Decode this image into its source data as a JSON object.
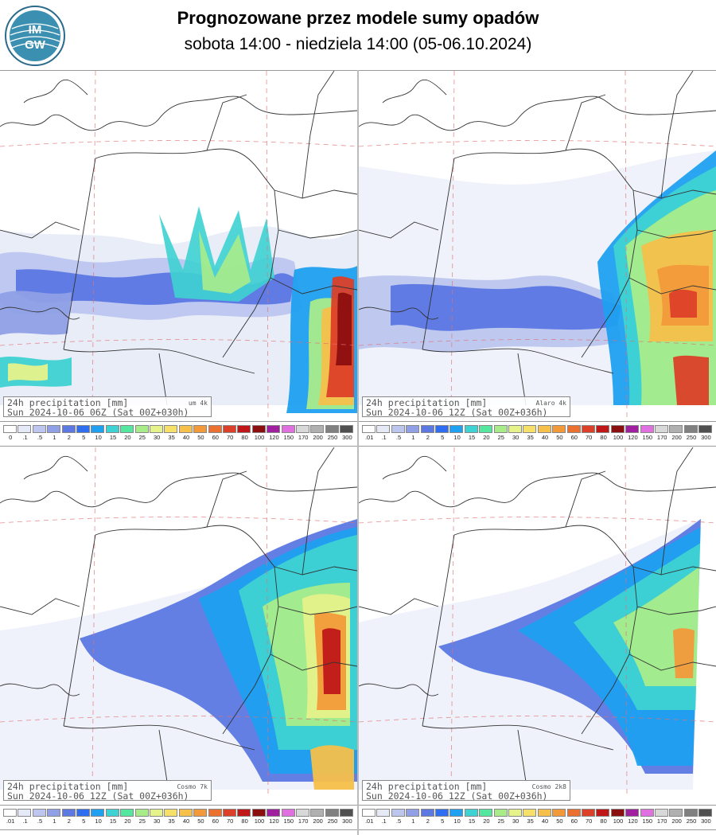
{
  "header": {
    "title": "Prognozowane przez modele sumy opadów",
    "subtitle": "sobota 14:00 - niedziela 14:00 (05-06.10.2024)",
    "logo_text": "IMGW"
  },
  "legend_labels_a": [
    "0",
    ".1",
    ".5",
    "1",
    "2",
    "5",
    "10",
    "15",
    "20",
    "25",
    "30",
    "35",
    "40",
    "50",
    "60",
    "70",
    "80",
    "100",
    "120",
    "150",
    "170",
    "200",
    "250",
    "300"
  ],
  "legend_labels_b": [
    ".01",
    ".1",
    ".5",
    "1",
    "2",
    "5",
    "10",
    "15",
    "20",
    "25",
    "30",
    "35",
    "40",
    "50",
    "60",
    "70",
    "80",
    "100",
    "120",
    "150",
    "170",
    "200",
    "250",
    "300"
  ],
  "legend_colors": [
    "#ffffff",
    "#e6eaf7",
    "#bcc6ef",
    "#8fa0e6",
    "#5b78e3",
    "#2f6ef0",
    "#1fa0f0",
    "#3ed2d2",
    "#55e6a0",
    "#a8ec8a",
    "#e6f28a",
    "#f7e06a",
    "#f6c04a",
    "#f29a3a",
    "#ec7030",
    "#dc4028",
    "#c01818",
    "#8c0f0f",
    "#a020a0",
    "#e070e0",
    "#d8d8d8",
    "#b0b0b0",
    "#808080",
    "#505050"
  ],
  "panels": [
    {
      "id": "um4k",
      "line1": "24h precipitation  [mm]",
      "line2": "Sun 2024-10-06 06Z (Sat 00Z+030h)",
      "model": "um 4k"
    },
    {
      "id": "alaro4k",
      "line1": "24h precipitation  [mm]",
      "line2": "Sun 2024-10-06 12Z (Sat 00Z+036h)",
      "model": "Alaro 4k"
    },
    {
      "id": "cosmo7k",
      "line1": "24h precipitation  [mm]",
      "line2": "Sun 2024-10-06 12Z (Sat 00Z+036h)",
      "model": "Cosmo 7k"
    },
    {
      "id": "cosmo2k8",
      "line1": "24h precipitation  [mm]",
      "line2": "Sun 2024-10-06 12Z (Sat 00Z+036h)",
      "model": "Cosmo 2k8"
    }
  ]
}
